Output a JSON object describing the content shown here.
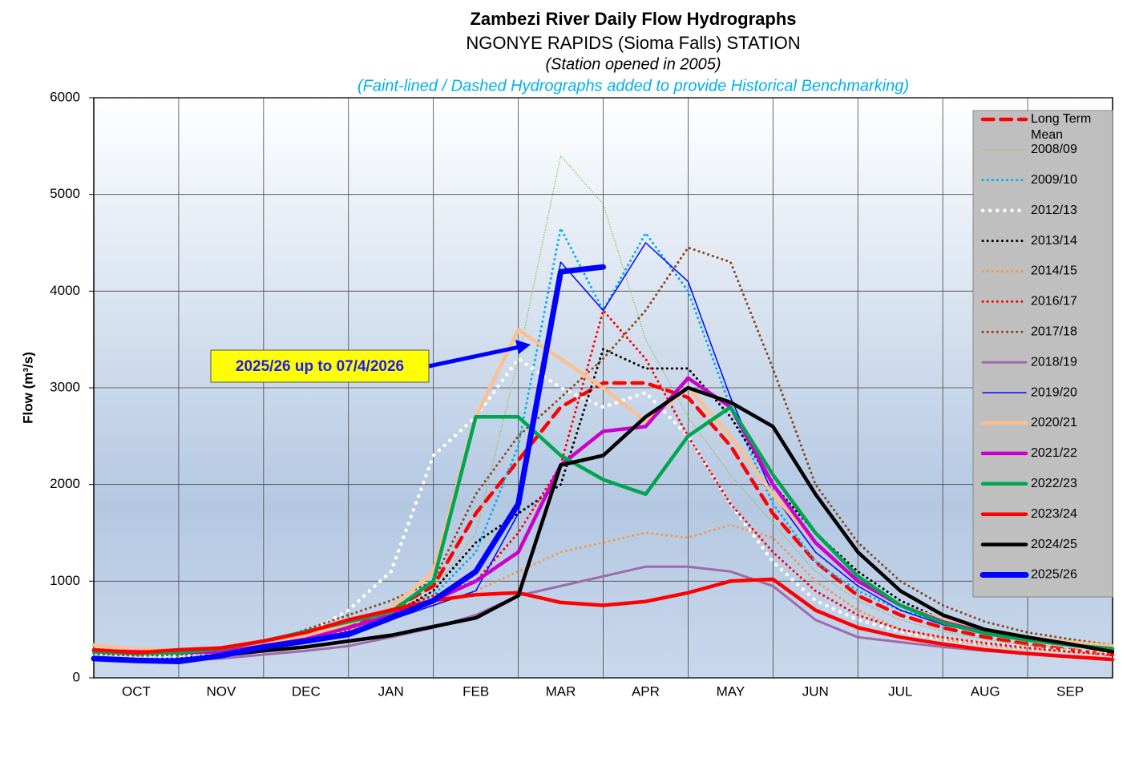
{
  "chart_data": {
    "type": "line",
    "title": "Zambezi River Daily Flow Hydrographs",
    "subtitle": "NGONYE RAPIDS (Sioma Falls) STATION",
    "station_note": "(Station opened in 2005)",
    "benchmark_note": "(Faint-lined / Dashed Hydrographs added to provide Historical Benchmarking)",
    "ylabel": "Flow (m³/s)",
    "annotation": "2025/26 up to 07/4/2026",
    "categories": [
      null,
      "OCT",
      null,
      "NOV",
      null,
      "DEC",
      null,
      "JAN",
      null,
      "FEB",
      null,
      "MAR",
      null,
      "APR",
      null,
      "MAY",
      null,
      "JUN",
      null,
      "JUL",
      null,
      "AUG",
      null,
      "SEP",
      null
    ],
    "ylim": [
      0,
      6000
    ],
    "yticks": [
      0,
      1000,
      2000,
      3000,
      4000,
      5000,
      6000
    ],
    "grid": true,
    "legend": "right",
    "series": [
      {
        "name": "Long Term Mean",
        "color": "#ff0000",
        "line_style": "dashed",
        "weight": "thick",
        "values": [
          280,
          260,
          270,
          290,
          340,
          420,
          550,
          700,
          950,
          1700,
          2250,
          2800,
          3050,
          3050,
          2900,
          2400,
          1700,
          1200,
          850,
          650,
          520,
          420,
          350,
          290,
          240
        ]
      },
      {
        "name": "2008/09",
        "color": "#9bbb59",
        "line_style": "dotted",
        "weight": "thin",
        "values": [
          300,
          270,
          260,
          280,
          330,
          400,
          520,
          650,
          900,
          1500,
          3300,
          5400,
          4900,
          3500,
          2700,
          2100,
          1600,
          1100,
          800,
          600,
          480,
          400,
          340,
          300,
          260
        ]
      },
      {
        "name": "2009/10",
        "color": "#00b0f0",
        "line_style": "dotted",
        "weight": "normal",
        "values": [
          250,
          230,
          230,
          260,
          320,
          400,
          520,
          650,
          850,
          1300,
          2400,
          4650,
          3800,
          4600,
          4000,
          2800,
          1800,
          1200,
          900,
          700,
          580,
          480,
          420,
          380,
          340
        ]
      },
      {
        "name": "2012/13",
        "color": "#ffffff",
        "line_style": "dotted",
        "weight": "thick",
        "values": [
          250,
          230,
          230,
          260,
          320,
          450,
          700,
          1100,
          2300,
          2700,
          3300,
          3000,
          2800,
          2950,
          2500,
          1800,
          1200,
          800,
          600,
          480,
          400,
          350,
          310,
          280,
          250
        ]
      },
      {
        "name": "2013/14",
        "color": "#000000",
        "line_style": "dotted",
        "weight": "normal",
        "values": [
          200,
          190,
          200,
          240,
          300,
          380,
          500,
          650,
          900,
          1400,
          1700,
          2000,
          3400,
          3200,
          3200,
          2700,
          2000,
          1500,
          1100,
          800,
          600,
          480,
          400,
          340,
          300
        ]
      },
      {
        "name": "2014/15",
        "color": "#f79646",
        "line_style": "dotted",
        "weight": "normal",
        "values": [
          300,
          270,
          260,
          280,
          320,
          400,
          500,
          620,
          750,
          900,
          1100,
          1300,
          1400,
          1500,
          1450,
          1580,
          1450,
          1000,
          700,
          500,
          400,
          340,
          300,
          270,
          240
        ]
      },
      {
        "name": "2016/17",
        "color": "#ff0000",
        "line_style": "dotted",
        "weight": "normal",
        "values": [
          250,
          230,
          240,
          270,
          330,
          420,
          560,
          700,
          850,
          1000,
          1500,
          2200,
          3800,
          3300,
          2500,
          1800,
          1300,
          900,
          650,
          500,
          420,
          360,
          310,
          270,
          240
        ]
      },
      {
        "name": "2017/18",
        "color": "#8b4513",
        "line_style": "dotted",
        "weight": "normal",
        "values": [
          250,
          230,
          240,
          270,
          350,
          500,
          650,
          800,
          1000,
          1900,
          2500,
          2900,
          3300,
          3800,
          4450,
          4300,
          3200,
          2000,
          1400,
          1000,
          750,
          580,
          470,
          400,
          340
        ]
      },
      {
        "name": "2018/19",
        "color": "#9e6ba8",
        "line_style": "solid",
        "weight": "normal",
        "values": [
          200,
          180,
          180,
          200,
          240,
          280,
          330,
          420,
          520,
          650,
          850,
          950,
          1050,
          1150,
          1150,
          1100,
          950,
          600,
          420,
          370,
          320,
          280,
          250,
          220,
          190
        ]
      },
      {
        "name": "2019/20",
        "color": "#0000ff",
        "line_style": "solid",
        "weight": "thin",
        "values": [
          200,
          180,
          200,
          240,
          300,
          380,
          480,
          600,
          750,
          900,
          1700,
          4300,
          3800,
          4500,
          4100,
          2900,
          1900,
          1300,
          950,
          700,
          550,
          460,
          400,
          350,
          310
        ]
      },
      {
        "name": "2020/21",
        "color": "#fac090",
        "line_style": "solid",
        "weight": "thick",
        "values": [
          340,
          300,
          280,
          290,
          340,
          430,
          560,
          720,
          1100,
          2700,
          3600,
          3300,
          3000,
          2650,
          3000,
          2500,
          1900,
          1400,
          1000,
          750,
          600,
          500,
          420,
          370,
          330
        ]
      },
      {
        "name": "2021/22",
        "color": "#cc00cc",
        "line_style": "solid",
        "weight": "thick",
        "values": [
          280,
          270,
          260,
          270,
          330,
          400,
          520,
          650,
          800,
          1000,
          1300,
          2200,
          2550,
          2600,
          3100,
          2800,
          2000,
          1400,
          1000,
          750,
          580,
          470,
          400,
          340,
          300
        ]
      },
      {
        "name": "2022/23",
        "color": "#00a550",
        "line_style": "solid",
        "weight": "thick",
        "values": [
          270,
          250,
          260,
          300,
          380,
          480,
          580,
          680,
          1000,
          2700,
          2700,
          2300,
          2050,
          1900,
          2500,
          2800,
          2100,
          1500,
          1050,
          750,
          570,
          460,
          390,
          340,
          300
        ]
      },
      {
        "name": "2023/24",
        "color": "#ff0000",
        "line_style": "solid",
        "weight": "thick",
        "values": [
          290,
          260,
          290,
          310,
          380,
          470,
          600,
          700,
          800,
          860,
          880,
          780,
          750,
          790,
          880,
          1000,
          1020,
          700,
          520,
          420,
          350,
          290,
          250,
          220,
          190
        ]
      },
      {
        "name": "2024/25",
        "color": "#000000",
        "line_style": "solid",
        "weight": "thick",
        "values": [
          200,
          180,
          170,
          230,
          280,
          320,
          380,
          440,
          530,
          620,
          850,
          2200,
          2300,
          2700,
          3000,
          2850,
          2600,
          1900,
          1300,
          900,
          650,
          500,
          420,
          350,
          270
        ]
      },
      {
        "name": "2025/26",
        "color": "#0000ff",
        "line_style": "solid",
        "weight": "heavy",
        "values": [
          200,
          180,
          170,
          230,
          320,
          380,
          450,
          620,
          800,
          1100,
          1800,
          4200,
          4250,
          null,
          null,
          null,
          null,
          null,
          null,
          null,
          null,
          null,
          null,
          null,
          null
        ]
      }
    ]
  }
}
